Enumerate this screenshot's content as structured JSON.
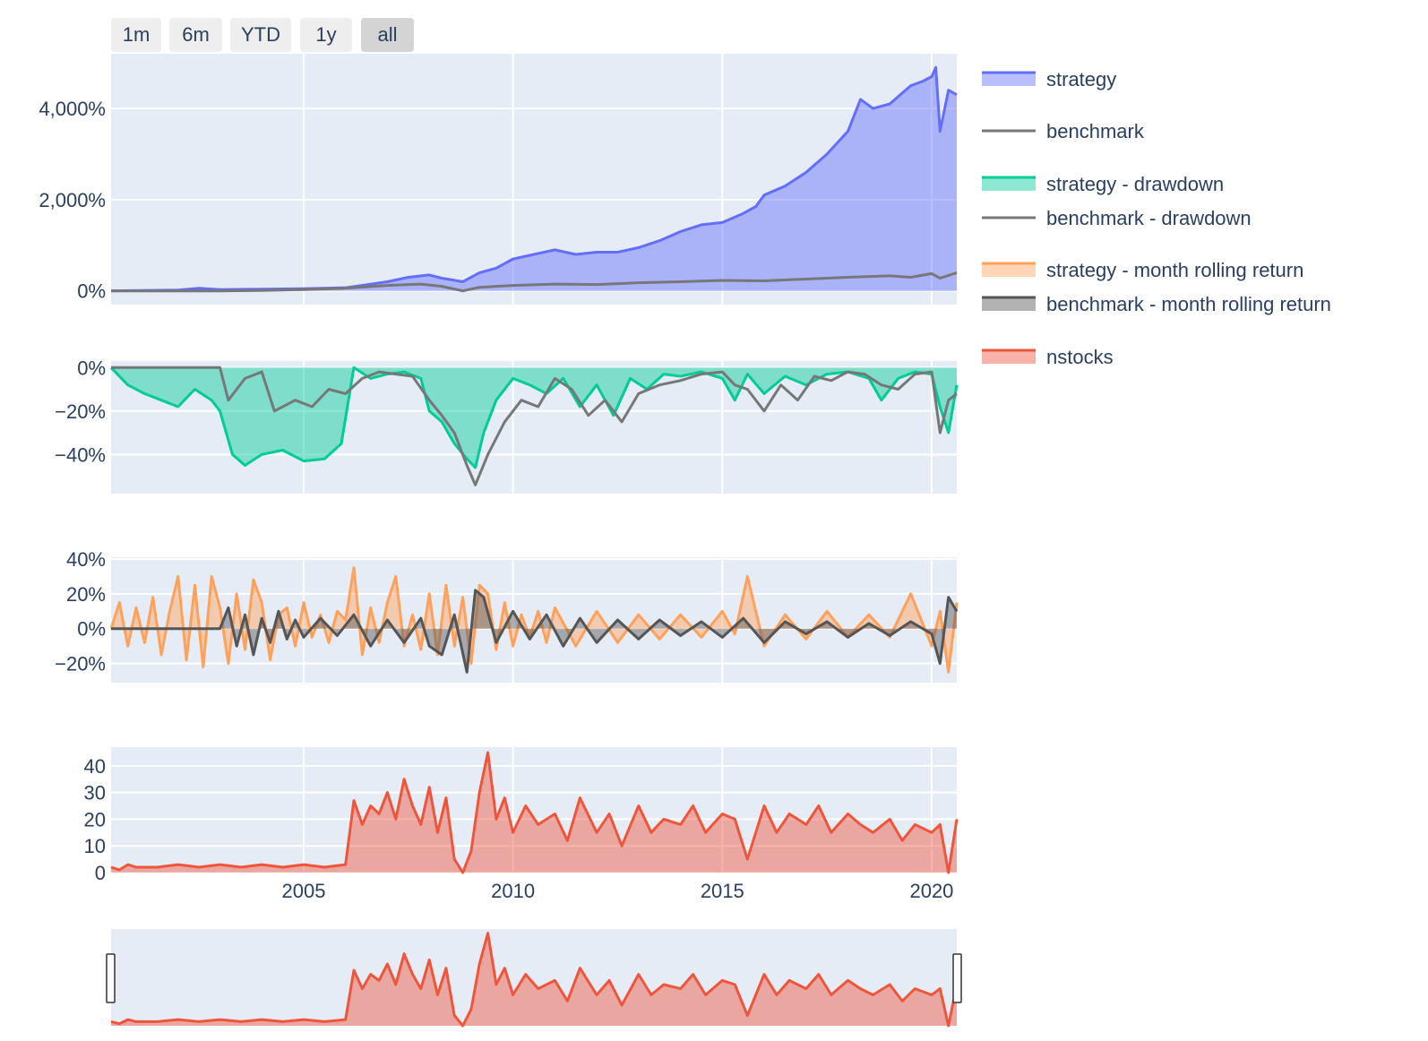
{
  "range_selector": {
    "buttons": [
      {
        "label": "1m",
        "active": false
      },
      {
        "label": "6m",
        "active": false
      },
      {
        "label": "YTD",
        "active": false
      },
      {
        "label": "1y",
        "active": false
      },
      {
        "label": "all",
        "active": true
      }
    ]
  },
  "legend": {
    "items": [
      {
        "label": "strategy",
        "color": "#636efa",
        "style": "area"
      },
      {
        "label": "benchmark",
        "color": "#777777",
        "style": "line"
      },
      {
        "label": "strategy - drawdown",
        "color": "#00cc96",
        "style": "area"
      },
      {
        "label": "benchmark - drawdown",
        "color": "#777777",
        "style": "line"
      },
      {
        "label": "strategy - month rolling return",
        "color": "#ffa15a",
        "style": "area"
      },
      {
        "label": "benchmark - month rolling return",
        "color": "#555555",
        "style": "area"
      },
      {
        "label": "nstocks",
        "color": "#ef553b",
        "style": "area"
      }
    ]
  },
  "chart_data": [
    {
      "type": "area",
      "panel": "cumulative-return",
      "x_range": [
        2000.4,
        2020.6
      ],
      "ylim": [
        -300,
        5200
      ],
      "y_ticks": [
        {
          "value": 0,
          "label": "0%"
        },
        {
          "value": 2000,
          "label": "2,000%"
        },
        {
          "value": 4000,
          "label": "4,000%"
        }
      ],
      "x_ticks_grid": [
        2005,
        2010,
        2015,
        2020
      ],
      "series": [
        {
          "name": "strategy",
          "color": "#636efa",
          "fill": true,
          "x": [
            2000.4,
            2002.0,
            2002.5,
            2003.0,
            2004.0,
            2005.0,
            2006.0,
            2007.0,
            2007.5,
            2008.0,
            2008.3,
            2008.8,
            2009.2,
            2009.6,
            2010.0,
            2010.5,
            2011.0,
            2011.5,
            2012.0,
            2012.5,
            2013.0,
            2013.5,
            2014.0,
            2014.5,
            2015.0,
            2015.5,
            2015.8,
            2016.0,
            2016.5,
            2017.0,
            2017.5,
            2018.0,
            2018.3,
            2018.6,
            2019.0,
            2019.5,
            2019.8,
            2020.0,
            2020.1,
            2020.2,
            2020.4,
            2020.6
          ],
          "y": [
            0,
            20,
            60,
            30,
            40,
            50,
            70,
            200,
            300,
            350,
            280,
            200,
            400,
            500,
            700,
            800,
            900,
            800,
            850,
            850,
            950,
            1100,
            1300,
            1450,
            1500,
            1700,
            1850,
            2100,
            2300,
            2600,
            3000,
            3500,
            4200,
            4000,
            4100,
            4500,
            4600,
            4700,
            4900,
            3500,
            4400,
            4300
          ]
        },
        {
          "name": "benchmark",
          "color": "#777777",
          "fill": false,
          "x": [
            2000.4,
            2002.0,
            2003.0,
            2004.0,
            2005.0,
            2006.0,
            2007.0,
            2007.8,
            2008.3,
            2008.8,
            2009.2,
            2010.0,
            2011.0,
            2012.0,
            2013.0,
            2014.0,
            2015.0,
            2016.0,
            2017.0,
            2018.0,
            2019.0,
            2019.5,
            2020.0,
            2020.2,
            2020.6
          ],
          "y": [
            0,
            0,
            0,
            10,
            30,
            60,
            120,
            150,
            100,
            0,
            80,
            120,
            150,
            140,
            180,
            200,
            230,
            220,
            260,
            300,
            330,
            300,
            380,
            280,
            400
          ]
        }
      ]
    },
    {
      "type": "area",
      "panel": "drawdown",
      "x_range": [
        2000.4,
        2020.6
      ],
      "ylim": [
        -58,
        3
      ],
      "y_ticks": [
        {
          "value": 0,
          "label": "0%"
        },
        {
          "value": -20,
          "label": "−20%"
        },
        {
          "value": -40,
          "label": "−40%"
        }
      ],
      "x_ticks_grid": [
        2005,
        2010,
        2015,
        2020
      ],
      "series": [
        {
          "name": "strategy - drawdown",
          "color": "#00cc96",
          "fill": true,
          "x": [
            2000.4,
            2000.8,
            2001.2,
            2001.6,
            2002.0,
            2002.4,
            2002.8,
            2003.0,
            2003.3,
            2003.6,
            2004.0,
            2004.5,
            2005.0,
            2005.5,
            2005.9,
            2006.2,
            2006.6,
            2007.0,
            2007.4,
            2007.8,
            2008.0,
            2008.3,
            2008.6,
            2008.9,
            2009.1,
            2009.3,
            2009.6,
            2010.0,
            2010.4,
            2010.8,
            2011.2,
            2011.6,
            2012.0,
            2012.4,
            2012.8,
            2013.2,
            2013.6,
            2014.0,
            2014.5,
            2015.0,
            2015.3,
            2015.6,
            2016.0,
            2016.5,
            2017.0,
            2017.5,
            2018.0,
            2018.5,
            2018.8,
            2019.2,
            2019.6,
            2020.0,
            2020.2,
            2020.4,
            2020.6
          ],
          "y": [
            0,
            -8,
            -12,
            -15,
            -18,
            -10,
            -15,
            -20,
            -40,
            -45,
            -40,
            -38,
            -43,
            -42,
            -35,
            0,
            -5,
            -3,
            -2,
            -5,
            -20,
            -25,
            -35,
            -42,
            -46,
            -30,
            -15,
            -5,
            -8,
            -12,
            -5,
            -18,
            -8,
            -22,
            -5,
            -10,
            -3,
            -4,
            -2,
            -5,
            -15,
            -3,
            -12,
            -4,
            -8,
            -3,
            -2,
            -5,
            -15,
            -5,
            -2,
            -3,
            -18,
            -30,
            -8
          ]
        },
        {
          "name": "benchmark - drawdown",
          "color": "#777777",
          "fill": false,
          "x": [
            2000.4,
            2003.0,
            2003.2,
            2003.6,
            2004.0,
            2004.3,
            2004.8,
            2005.2,
            2005.6,
            2006.0,
            2006.4,
            2006.8,
            2007.2,
            2007.6,
            2008.0,
            2008.3,
            2008.6,
            2008.9,
            2009.1,
            2009.4,
            2009.8,
            2010.2,
            2010.6,
            2011.0,
            2011.4,
            2011.8,
            2012.2,
            2012.6,
            2013.0,
            2013.5,
            2014.0,
            2014.5,
            2015.0,
            2015.3,
            2015.6,
            2016.0,
            2016.4,
            2016.8,
            2017.2,
            2017.6,
            2018.0,
            2018.4,
            2018.8,
            2019.2,
            2019.6,
            2020.0,
            2020.2,
            2020.4,
            2020.6
          ],
          "y": [
            0,
            0,
            -15,
            -5,
            -2,
            -20,
            -15,
            -18,
            -10,
            -12,
            -5,
            -2,
            -3,
            -4,
            -15,
            -22,
            -30,
            -45,
            -54,
            -40,
            -25,
            -15,
            -18,
            -5,
            -10,
            -22,
            -15,
            -25,
            -12,
            -8,
            -6,
            -3,
            -2,
            -8,
            -10,
            -20,
            -8,
            -15,
            -4,
            -6,
            -2,
            -3,
            -8,
            -10,
            -3,
            -2,
            -30,
            -15,
            -12
          ]
        }
      ]
    },
    {
      "type": "area",
      "panel": "month-rolling-return",
      "x_range": [
        2000.4,
        2020.6
      ],
      "ylim": [
        -31,
        41
      ],
      "y_ticks": [
        {
          "value": 40,
          "label": "40%"
        },
        {
          "value": 20,
          "label": "20%"
        },
        {
          "value": 0,
          "label": "0%"
        },
        {
          "value": -20,
          "label": "−20%"
        }
      ],
      "x_ticks_grid": [
        2005,
        2010,
        2015,
        2020
      ],
      "series": [
        {
          "name": "strategy - month rolling return",
          "color": "#ffa15a",
          "fill": true,
          "x": [
            2000.4,
            2000.6,
            2000.8,
            2001.0,
            2001.2,
            2001.4,
            2001.6,
            2001.8,
            2002.0,
            2002.2,
            2002.4,
            2002.6,
            2002.8,
            2003.0,
            2003.2,
            2003.4,
            2003.6,
            2003.8,
            2004.0,
            2004.2,
            2004.4,
            2004.6,
            2004.8,
            2005.0,
            2005.2,
            2005.4,
            2005.6,
            2005.8,
            2006.0,
            2006.2,
            2006.4,
            2006.6,
            2006.8,
            2007.0,
            2007.2,
            2007.4,
            2007.6,
            2007.8,
            2008.0,
            2008.2,
            2008.4,
            2008.6,
            2008.8,
            2009.0,
            2009.2,
            2009.4,
            2009.6,
            2009.8,
            2010.0,
            2010.2,
            2010.4,
            2010.6,
            2010.8,
            2011.0,
            2011.5,
            2012.0,
            2012.5,
            2013.0,
            2013.5,
            2014.0,
            2014.5,
            2015.0,
            2015.3,
            2015.6,
            2016.0,
            2016.5,
            2017.0,
            2017.5,
            2018.0,
            2018.5,
            2019.0,
            2019.5,
            2020.0,
            2020.2,
            2020.4,
            2020.6
          ],
          "y": [
            0,
            15,
            -10,
            12,
            -8,
            18,
            -15,
            10,
            30,
            -18,
            25,
            -22,
            30,
            12,
            -20,
            20,
            -12,
            28,
            15,
            -18,
            8,
            12,
            -10,
            15,
            -5,
            8,
            -8,
            10,
            5,
            35,
            -15,
            12,
            -8,
            15,
            30,
            -10,
            8,
            -12,
            20,
            -15,
            25,
            -10,
            18,
            -20,
            25,
            20,
            -12,
            15,
            -10,
            8,
            -5,
            10,
            -8,
            12,
            -10,
            10,
            -8,
            8,
            -6,
            8,
            -5,
            10,
            -3,
            30,
            -10,
            8,
            -6,
            10,
            -5,
            8,
            -5,
            20,
            -10,
            10,
            -25,
            15
          ]
        },
        {
          "name": "benchmark - month rolling return",
          "color": "#555555",
          "fill": true,
          "x": [
            2000.4,
            2003.0,
            2003.2,
            2003.4,
            2003.6,
            2003.8,
            2004.0,
            2004.2,
            2004.4,
            2004.6,
            2004.8,
            2005.0,
            2005.4,
            2005.8,
            2006.2,
            2006.6,
            2007.0,
            2007.4,
            2007.8,
            2008.0,
            2008.3,
            2008.6,
            2008.9,
            2009.1,
            2009.3,
            2009.6,
            2010.0,
            2010.4,
            2010.8,
            2011.2,
            2011.6,
            2012.0,
            2012.5,
            2013.0,
            2013.5,
            2014.0,
            2014.5,
            2015.0,
            2015.5,
            2016.0,
            2016.5,
            2017.0,
            2017.5,
            2018.0,
            2018.5,
            2019.0,
            2019.5,
            2020.0,
            2020.2,
            2020.4,
            2020.6
          ],
          "y": [
            0,
            0,
            12,
            -10,
            8,
            -15,
            6,
            -8,
            10,
            -6,
            5,
            -5,
            6,
            -4,
            8,
            -10,
            5,
            -8,
            6,
            -10,
            -15,
            8,
            -25,
            22,
            18,
            -8,
            10,
            -6,
            8,
            -10,
            6,
            -8,
            5,
            -6,
            5,
            -4,
            4,
            -5,
            6,
            -8,
            4,
            -3,
            4,
            -5,
            3,
            -4,
            4,
            -3,
            -20,
            18,
            10
          ]
        }
      ]
    },
    {
      "type": "area",
      "panel": "nstocks",
      "x_range": [
        2000.4,
        2020.6
      ],
      "ylim": [
        0,
        47
      ],
      "y_ticks": [
        {
          "value": 0,
          "label": "0"
        },
        {
          "value": 10,
          "label": "10"
        },
        {
          "value": 20,
          "label": "20"
        },
        {
          "value": 30,
          "label": "30"
        },
        {
          "value": 40,
          "label": "40"
        }
      ],
      "x_ticks": [
        {
          "value": 2005,
          "label": "2005"
        },
        {
          "value": 2010,
          "label": "2010"
        },
        {
          "value": 2015,
          "label": "2015"
        },
        {
          "value": 2020,
          "label": "2020"
        }
      ],
      "series": [
        {
          "name": "nstocks",
          "color": "#ef553b",
          "fill": true,
          "x": [
            2000.4,
            2000.6,
            2000.8,
            2001.0,
            2001.5,
            2002.0,
            2002.5,
            2003.0,
            2003.5,
            2004.0,
            2004.5,
            2005.0,
            2005.5,
            2006.0,
            2006.2,
            2006.4,
            2006.6,
            2006.8,
            2007.0,
            2007.2,
            2007.4,
            2007.6,
            2007.8,
            2008.0,
            2008.2,
            2008.4,
            2008.6,
            2008.8,
            2009.0,
            2009.2,
            2009.4,
            2009.6,
            2009.8,
            2010.0,
            2010.3,
            2010.6,
            2011.0,
            2011.3,
            2011.6,
            2012.0,
            2012.3,
            2012.6,
            2013.0,
            2013.3,
            2013.6,
            2014.0,
            2014.3,
            2014.6,
            2015.0,
            2015.3,
            2015.6,
            2016.0,
            2016.3,
            2016.6,
            2017.0,
            2017.3,
            2017.6,
            2018.0,
            2018.3,
            2018.6,
            2019.0,
            2019.3,
            2019.6,
            2020.0,
            2020.2,
            2020.4,
            2020.6
          ],
          "y": [
            2,
            1,
            3,
            2,
            2,
            3,
            2,
            3,
            2,
            3,
            2,
            3,
            2,
            3,
            27,
            18,
            25,
            22,
            30,
            20,
            35,
            25,
            18,
            32,
            15,
            28,
            5,
            0,
            8,
            30,
            45,
            20,
            28,
            15,
            25,
            18,
            22,
            12,
            28,
            15,
            22,
            10,
            25,
            15,
            20,
            18,
            25,
            15,
            22,
            20,
            5,
            25,
            15,
            22,
            18,
            25,
            15,
            22,
            18,
            15,
            20,
            12,
            18,
            15,
            18,
            0,
            20
          ]
        }
      ]
    }
  ]
}
